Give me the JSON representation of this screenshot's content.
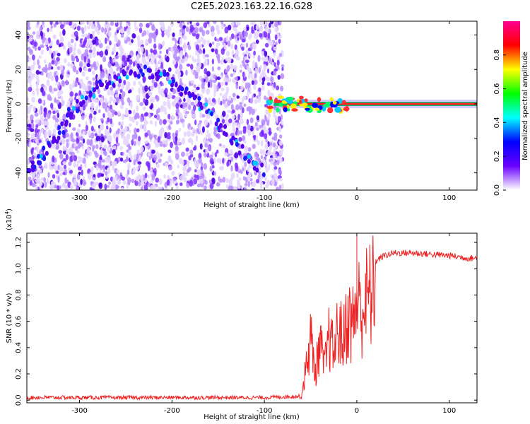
{
  "title": "C2E5.2023.163.22.16.G28",
  "chart_data": [
    {
      "type": "heatmap",
      "title": "C2E5.2023.163.22.16.G28",
      "xlabel": "Height of straight line (km)",
      "ylabel": "Frequency (Hz)",
      "xlim": [
        -357,
        130
      ],
      "ylim": [
        -50,
        48
      ],
      "x_ticks": [
        -300,
        -200,
        -100,
        0,
        100
      ],
      "y_ticks": [
        -40,
        -20,
        0,
        20,
        40
      ],
      "colorbar": {
        "label": "Normalized spectral amplitude",
        "range": [
          0.0,
          1.0
        ],
        "ticks": [
          0.0,
          0.2,
          0.4,
          0.6,
          0.8
        ],
        "colors": [
          "#ffffff",
          "#6a00ff",
          "#0000ff",
          "#00ffff",
          "#00ff00",
          "#ffff00",
          "#ff0000",
          "#ff0090"
        ]
      },
      "noise_region_x": [
        -357,
        -80
      ],
      "ridge": [
        {
          "x": -355,
          "y": -40
        },
        {
          "x": -340,
          "y": -30
        },
        {
          "x": -325,
          "y": -20
        },
        {
          "x": -310,
          "y": -5
        },
        {
          "x": -290,
          "y": 5
        },
        {
          "x": -270,
          "y": 12
        },
        {
          "x": -250,
          "y": 18
        },
        {
          "x": -225,
          "y": 19
        },
        {
          "x": -200,
          "y": 13
        },
        {
          "x": -180,
          "y": 5
        },
        {
          "x": -160,
          "y": -5
        },
        {
          "x": -140,
          "y": -18
        },
        {
          "x": -120,
          "y": -30
        },
        {
          "x": -100,
          "y": -40
        }
      ],
      "carrier": {
        "x_start": -90,
        "x_end": 130,
        "y": 0
      }
    },
    {
      "type": "line",
      "xlabel": "Height of straight line (km)",
      "ylabel": "SNR (10 * v/v)",
      "y_multiplier": "(x10",
      "y_multiplier_exp": "4",
      "y_multiplier_close": ")",
      "xlim": [
        -357,
        130
      ],
      "ylim": [
        -0.02,
        1.27
      ],
      "x_ticks": [
        -300,
        -200,
        -100,
        0,
        100
      ],
      "y_ticks": [
        0.0,
        0.2,
        0.4,
        0.6,
        0.8,
        1.0,
        1.2
      ],
      "color": "#ee2222",
      "series": [
        {
          "x": [
            -357,
            -300,
            -200,
            -100,
            -60,
            -55,
            -50,
            -45,
            -40,
            -35,
            -30,
            -25,
            -20,
            -15,
            -10,
            -5,
            0,
            5,
            10,
            15,
            20,
            25,
            30,
            40,
            60,
            80,
            100,
            120,
            130
          ],
          "y": [
            0.02,
            0.02,
            0.02,
            0.02,
            0.03,
            0.3,
            0.6,
            0.25,
            0.55,
            0.3,
            0.6,
            0.45,
            0.7,
            0.55,
            0.8,
            0.7,
            0.95,
            0.85,
            0.95,
            1.0,
            1.05,
            1.08,
            1.1,
            1.12,
            1.12,
            1.11,
            1.1,
            1.08,
            1.08
          ]
        }
      ],
      "peak": {
        "x": 0,
        "y": 1.26
      }
    }
  ]
}
